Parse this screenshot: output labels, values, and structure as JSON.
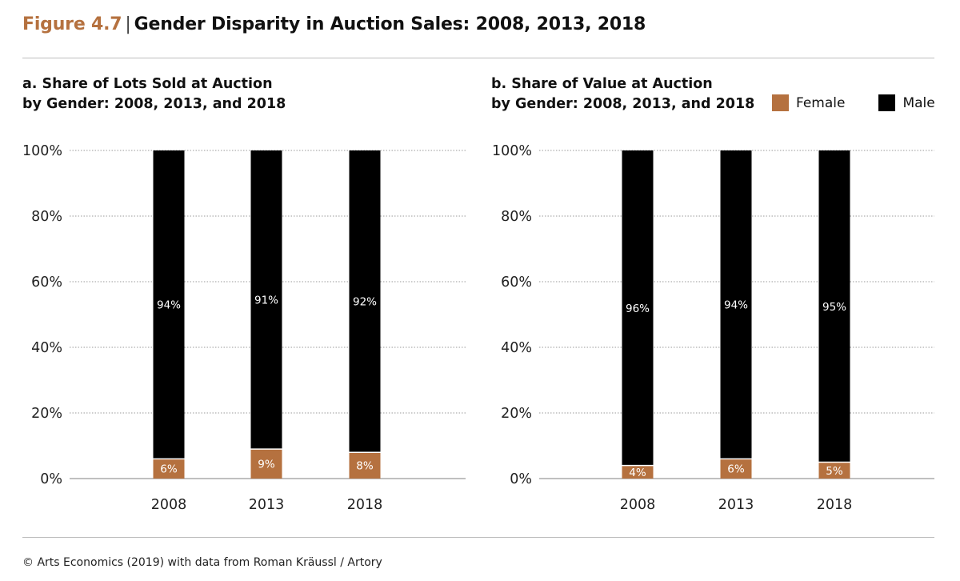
{
  "figure": {
    "number": "Figure 4.7",
    "title": "Gender Disparity in Auction Sales: 2008, 2013, 2018"
  },
  "legend": [
    {
      "label": "Female",
      "color": "#b5713f"
    },
    {
      "label": "Male",
      "color": "#000000"
    }
  ],
  "source": "© Arts Economics (2019) with data from Roman Kräussl / Artory",
  "chart_data": [
    {
      "type": "bar",
      "stacked": true,
      "title_line1": "a. Share of Lots Sold at Auction",
      "title_line2": "by Gender: 2008, 2013, and 2018",
      "categories": [
        "2008",
        "2013",
        "2018"
      ],
      "ylim": [
        0,
        100
      ],
      "yticks": [
        "0%",
        "20%",
        "40%",
        "60%",
        "80%",
        "100%"
      ],
      "grid": true,
      "series": [
        {
          "name": "Female",
          "values": [
            6,
            9,
            8
          ],
          "labels": [
            "6%",
            "9%",
            "8%"
          ],
          "color": "#b5713f"
        },
        {
          "name": "Male",
          "values": [
            94,
            91,
            92
          ],
          "labels": [
            "94%",
            "91%",
            "92%"
          ],
          "color": "#000000"
        }
      ]
    },
    {
      "type": "bar",
      "stacked": true,
      "title_line1": "b. Share of Value at Auction",
      "title_line2": "by Gender: 2008, 2013, and 2018",
      "categories": [
        "2008",
        "2013",
        "2018"
      ],
      "ylim": [
        0,
        100
      ],
      "yticks": [
        "0%",
        "20%",
        "40%",
        "60%",
        "80%",
        "100%"
      ],
      "grid": true,
      "legend_position": "top-right",
      "series": [
        {
          "name": "Female",
          "values": [
            4,
            6,
            5
          ],
          "labels": [
            "4%",
            "6%",
            "5%"
          ],
          "color": "#b5713f"
        },
        {
          "name": "Male",
          "values": [
            96,
            94,
            95
          ],
          "labels": [
            "96%",
            "94%",
            "95%"
          ],
          "color": "#000000"
        }
      ]
    }
  ]
}
